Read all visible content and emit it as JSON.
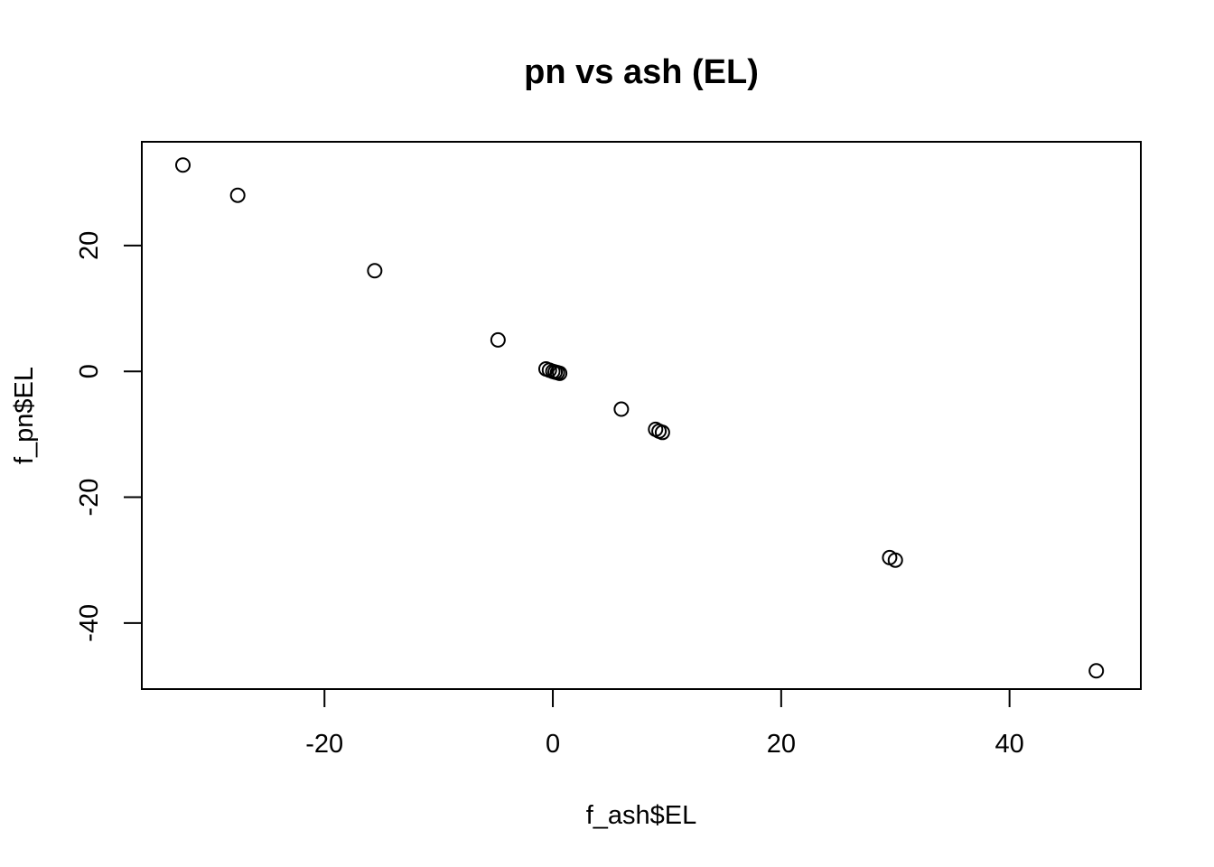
{
  "chart_data": {
    "type": "scatter",
    "title": "pn vs ash (EL)",
    "xlabel": "f_ash$EL",
    "ylabel": "f_pn$EL",
    "xlim": [
      -36,
      51.5
    ],
    "ylim": [
      -50.5,
      36.5
    ],
    "xticks": [
      -20,
      0,
      20,
      40
    ],
    "yticks": [
      -40,
      -20,
      0,
      20
    ],
    "xtick_labels": [
      "-20",
      "0",
      "20",
      "40"
    ],
    "ytick_labels": [
      "-40",
      "-20",
      "0",
      "20"
    ],
    "grid": false,
    "marker": "open-circle",
    "color": "#000000",
    "points": [
      {
        "x": -32.4,
        "y": 32.8
      },
      {
        "x": -27.6,
        "y": 28.0
      },
      {
        "x": -15.6,
        "y": 16.0
      },
      {
        "x": -4.8,
        "y": 5.0
      },
      {
        "x": -0.6,
        "y": 0.4
      },
      {
        "x": -0.3,
        "y": 0.2
      },
      {
        "x": 0.0,
        "y": 0.0
      },
      {
        "x": 0.2,
        "y": -0.1
      },
      {
        "x": 0.4,
        "y": -0.2
      },
      {
        "x": 0.6,
        "y": -0.3
      },
      {
        "x": 6.0,
        "y": -6.0
      },
      {
        "x": 9.0,
        "y": -9.2
      },
      {
        "x": 9.3,
        "y": -9.5
      },
      {
        "x": 9.6,
        "y": -9.7
      },
      {
        "x": 29.5,
        "y": -29.6
      },
      {
        "x": 30.0,
        "y": -30.0
      },
      {
        "x": 47.6,
        "y": -47.6
      }
    ]
  }
}
